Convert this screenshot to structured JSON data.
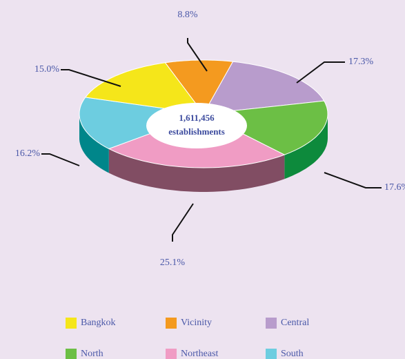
{
  "chart_data": {
    "type": "pie",
    "categories": [
      "Bangkok",
      "Vicinity",
      "Central",
      "North",
      "Northeast",
      "South"
    ],
    "values": [
      15.0,
      8.8,
      17.3,
      17.6,
      25.1,
      16.2
    ],
    "value_labels": [
      "15.0%",
      "8.8%",
      "17.3%",
      "17.6%",
      "25.1%",
      "16.2%"
    ],
    "colors": [
      "#f5e61a",
      "#f49a1f",
      "#b89ccc",
      "#6cbf45",
      "#f09cc4",
      "#6dcde0"
    ],
    "side_colors": [
      "#b8a900",
      "#b86a00",
      "#7e6398",
      "#0d8a3c",
      "#814d63",
      "#00868a"
    ],
    "center_label": [
      "1,611,456",
      "establishments"
    ],
    "legend": true
  }
}
